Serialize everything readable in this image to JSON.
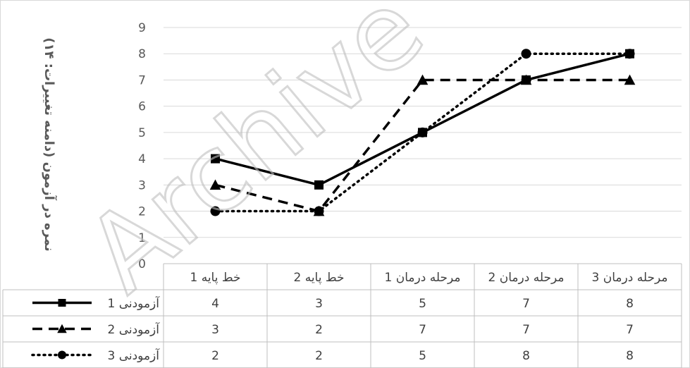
{
  "chart_data": {
    "type": "line",
    "categories": [
      "خط پایه 1",
      "خط پایه 2",
      "مرحله درمان 1",
      "مرحله درمان 2",
      "مرحله درمان 3"
    ],
    "ylabel": "نمره در آزمون (دامنه تغییرات: ۱۴)",
    "ylim": [
      0,
      9
    ],
    "yticks": [
      "0",
      "1",
      "2",
      "3",
      "4",
      "5",
      "6",
      "7",
      "8",
      "9"
    ],
    "grid": true,
    "data_table": true,
    "watermark": "Archive",
    "series": [
      {
        "name": "آزمودنی 1",
        "values": [
          4,
          3,
          5,
          7,
          8
        ],
        "line_style": "solid",
        "marker": "square",
        "color": "#000000"
      },
      {
        "name": "آزمودنی 2",
        "values": [
          3,
          2,
          7,
          7,
          7
        ],
        "line_style": "dashed",
        "marker": "triangle",
        "color": "#000000"
      },
      {
        "name": "آزمودنی 3",
        "values": [
          2,
          2,
          5,
          8,
          8
        ],
        "line_style": "dotted",
        "marker": "circle",
        "color": "#000000"
      }
    ],
    "table_values": [
      [
        "4",
        "3",
        "5",
        "7",
        "8"
      ],
      [
        "3",
        "2",
        "7",
        "7",
        "7"
      ],
      [
        "2",
        "2",
        "5",
        "8",
        "8"
      ]
    ]
  }
}
